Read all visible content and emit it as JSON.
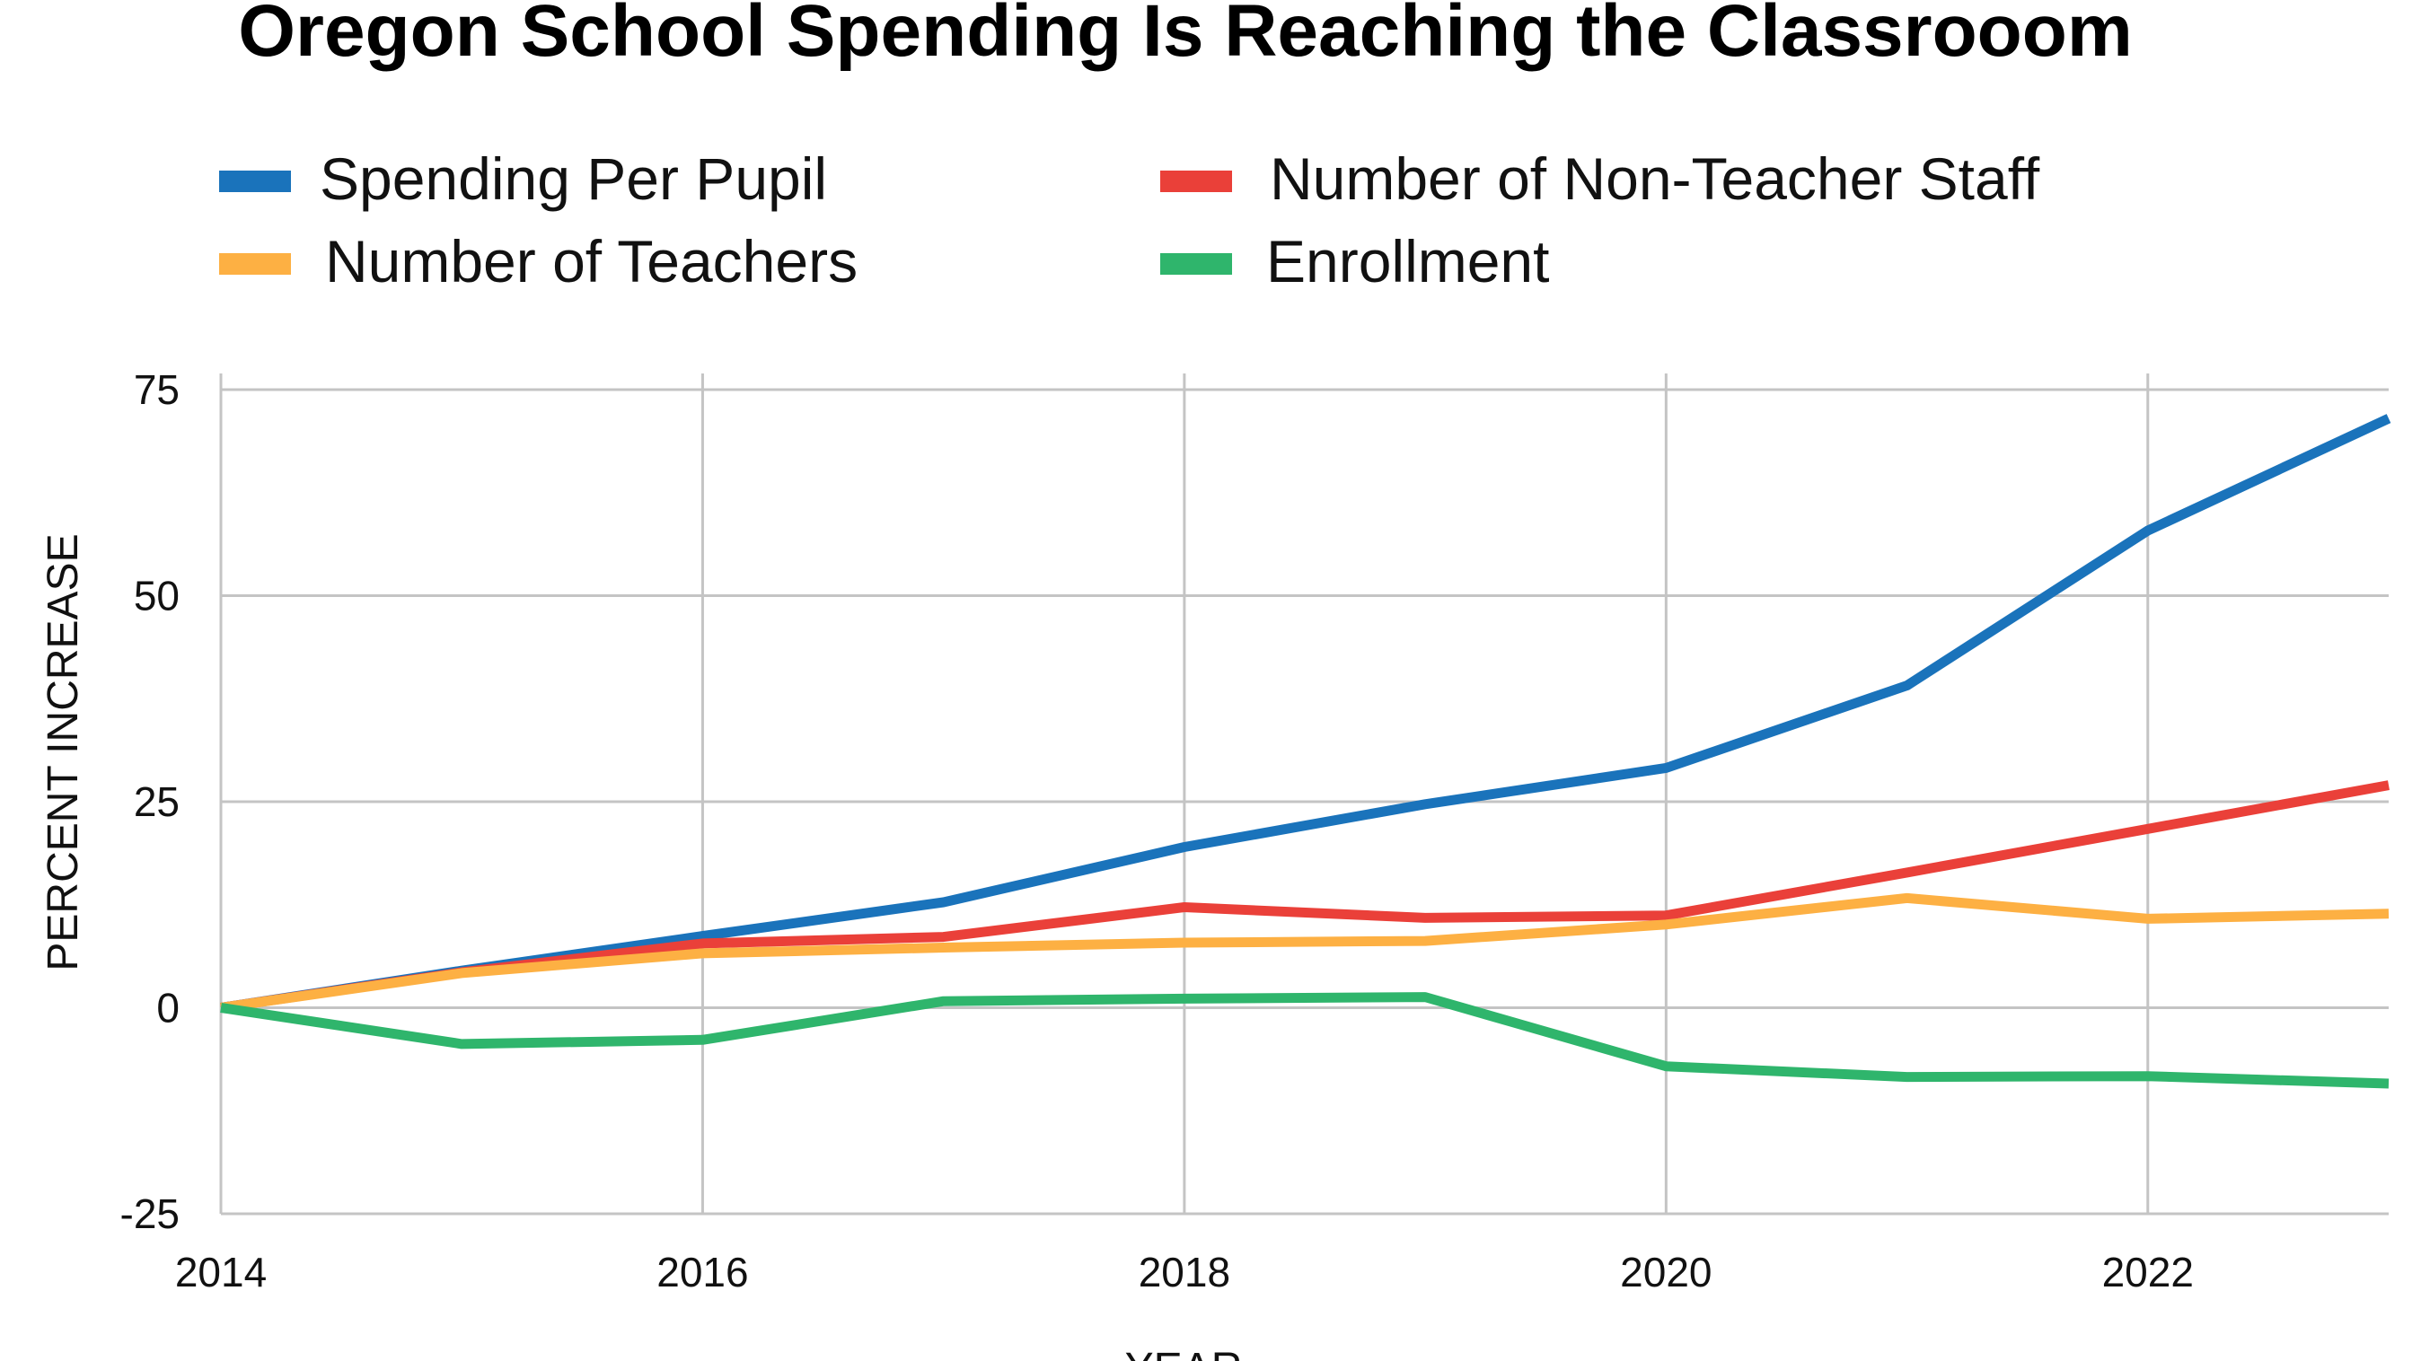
{
  "chart_data": {
    "type": "line",
    "title": "Oregon School Spending Is Reaching the Classrooom",
    "xlabel": "YEAR",
    "ylabel": "PERCENT INCREASE",
    "x": [
      2014,
      2015,
      2016,
      2017,
      2018,
      2019,
      2020,
      2021,
      2022,
      2023
    ],
    "xlim": [
      2014,
      2023
    ],
    "ylim": [
      -25,
      75
    ],
    "x_ticks": [
      "2014",
      "2016",
      "2018",
      "2020",
      "2022"
    ],
    "y_ticks": [
      "75",
      "50",
      "25",
      "0",
      "-25"
    ],
    "grid": true,
    "legend_position": "top",
    "series": [
      {
        "name": "Spending Per Pupil",
        "color": "#1a73bb",
        "values": [
          0,
          4.5,
          8.7,
          12.8,
          19.5,
          24.7,
          29.1,
          39.1,
          57.9,
          71.5
        ]
      },
      {
        "name": "Number of Non-Teacher Staff",
        "color": "#ea4039",
        "values": [
          0,
          4.3,
          7.8,
          8.6,
          12.2,
          10.9,
          11.2,
          16.4,
          21.7,
          27.0
        ]
      },
      {
        "name": "Number of Teachers",
        "color": "#fdb043",
        "values": [
          0,
          4.2,
          6.6,
          7.3,
          7.9,
          8.1,
          10.1,
          13.3,
          10.8,
          11.4
        ]
      },
      {
        "name": "Enrollment",
        "color": "#2fb56c",
        "values": [
          0,
          -4.4,
          -3.9,
          0.8,
          1.1,
          1.3,
          -7.1,
          -8.4,
          -8.3,
          -9.2
        ]
      }
    ]
  }
}
